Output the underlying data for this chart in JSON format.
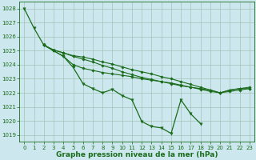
{
  "background_color": "#cce8ee",
  "grid_color": "#99bbaa",
  "line_color": "#1a6b1a",
  "xlabel": "Graphe pression niveau de la mer (hPa)",
  "xlabel_fontsize": 6.5,
  "xlabel_color": "#1a6b1a",
  "ylim": [
    1018.5,
    1028.5
  ],
  "xlim": [
    -0.5,
    23.5
  ],
  "yticks": [
    1019,
    1020,
    1021,
    1022,
    1023,
    1024,
    1025,
    1026,
    1027,
    1028
  ],
  "xticks": [
    0,
    1,
    2,
    3,
    4,
    5,
    6,
    7,
    8,
    9,
    10,
    11,
    12,
    13,
    14,
    15,
    16,
    17,
    18,
    19,
    20,
    21,
    22,
    23
  ],
  "tick_fontsize": 5.0,
  "lines": [
    {
      "x": [
        0,
        1,
        2,
        3,
        4,
        5,
        6,
        7,
        8,
        9,
        10,
        11,
        12,
        13,
        14,
        15,
        16,
        17,
        18
      ],
      "y": [
        1028.0,
        1026.6,
        1025.4,
        1025.0,
        1024.6,
        1023.8,
        1022.65,
        1022.3,
        1022.0,
        1022.25,
        1021.8,
        1021.5,
        1019.95,
        1019.6,
        1019.5,
        1019.1,
        1021.5,
        1020.5,
        1019.8
      ],
      "marker": "v",
      "lw": 0.9,
      "ms": 2.5
    },
    {
      "x": [
        2,
        3,
        4,
        5,
        6,
        7,
        8,
        9,
        10,
        11,
        12,
        13,
        14,
        15,
        16,
        17,
        18,
        19,
        20,
        21,
        22,
        23
      ],
      "y": [
        1025.4,
        1025.05,
        1024.85,
        1024.6,
        1024.4,
        1024.2,
        1023.95,
        1023.75,
        1023.5,
        1023.3,
        1023.1,
        1022.95,
        1022.8,
        1022.65,
        1022.5,
        1022.4,
        1022.25,
        1022.1,
        1022.0,
        1022.2,
        1022.3,
        1022.3
      ],
      "marker": "D",
      "lw": 0.8,
      "ms": 1.8
    },
    {
      "x": [
        2,
        3,
        4,
        5,
        6,
        7,
        8,
        9,
        10,
        11,
        12,
        13,
        14,
        15,
        16,
        17,
        18,
        19,
        20,
        21,
        22,
        23
      ],
      "y": [
        1025.4,
        1025.05,
        1024.85,
        1024.65,
        1024.55,
        1024.4,
        1024.2,
        1024.05,
        1023.85,
        1023.65,
        1023.5,
        1023.35,
        1023.15,
        1023.0,
        1022.8,
        1022.6,
        1022.4,
        1022.2,
        1022.0,
        1022.1,
        1022.2,
        1022.3
      ],
      "marker": "D",
      "lw": 0.8,
      "ms": 1.8
    },
    {
      "x": [
        2,
        3,
        4,
        5,
        6,
        7,
        8,
        9,
        10,
        11,
        12,
        13,
        14,
        15,
        16,
        17,
        18,
        19,
        20,
        21,
        22,
        23
      ],
      "y": [
        1025.4,
        1025.0,
        1024.6,
        1024.0,
        1023.75,
        1023.6,
        1023.45,
        1023.35,
        1023.25,
        1023.15,
        1023.0,
        1022.9,
        1022.8,
        1022.7,
        1022.55,
        1022.4,
        1022.3,
        1022.2,
        1022.0,
        1022.2,
        1022.3,
        1022.4
      ],
      "marker": "D",
      "lw": 0.8,
      "ms": 1.8
    }
  ]
}
